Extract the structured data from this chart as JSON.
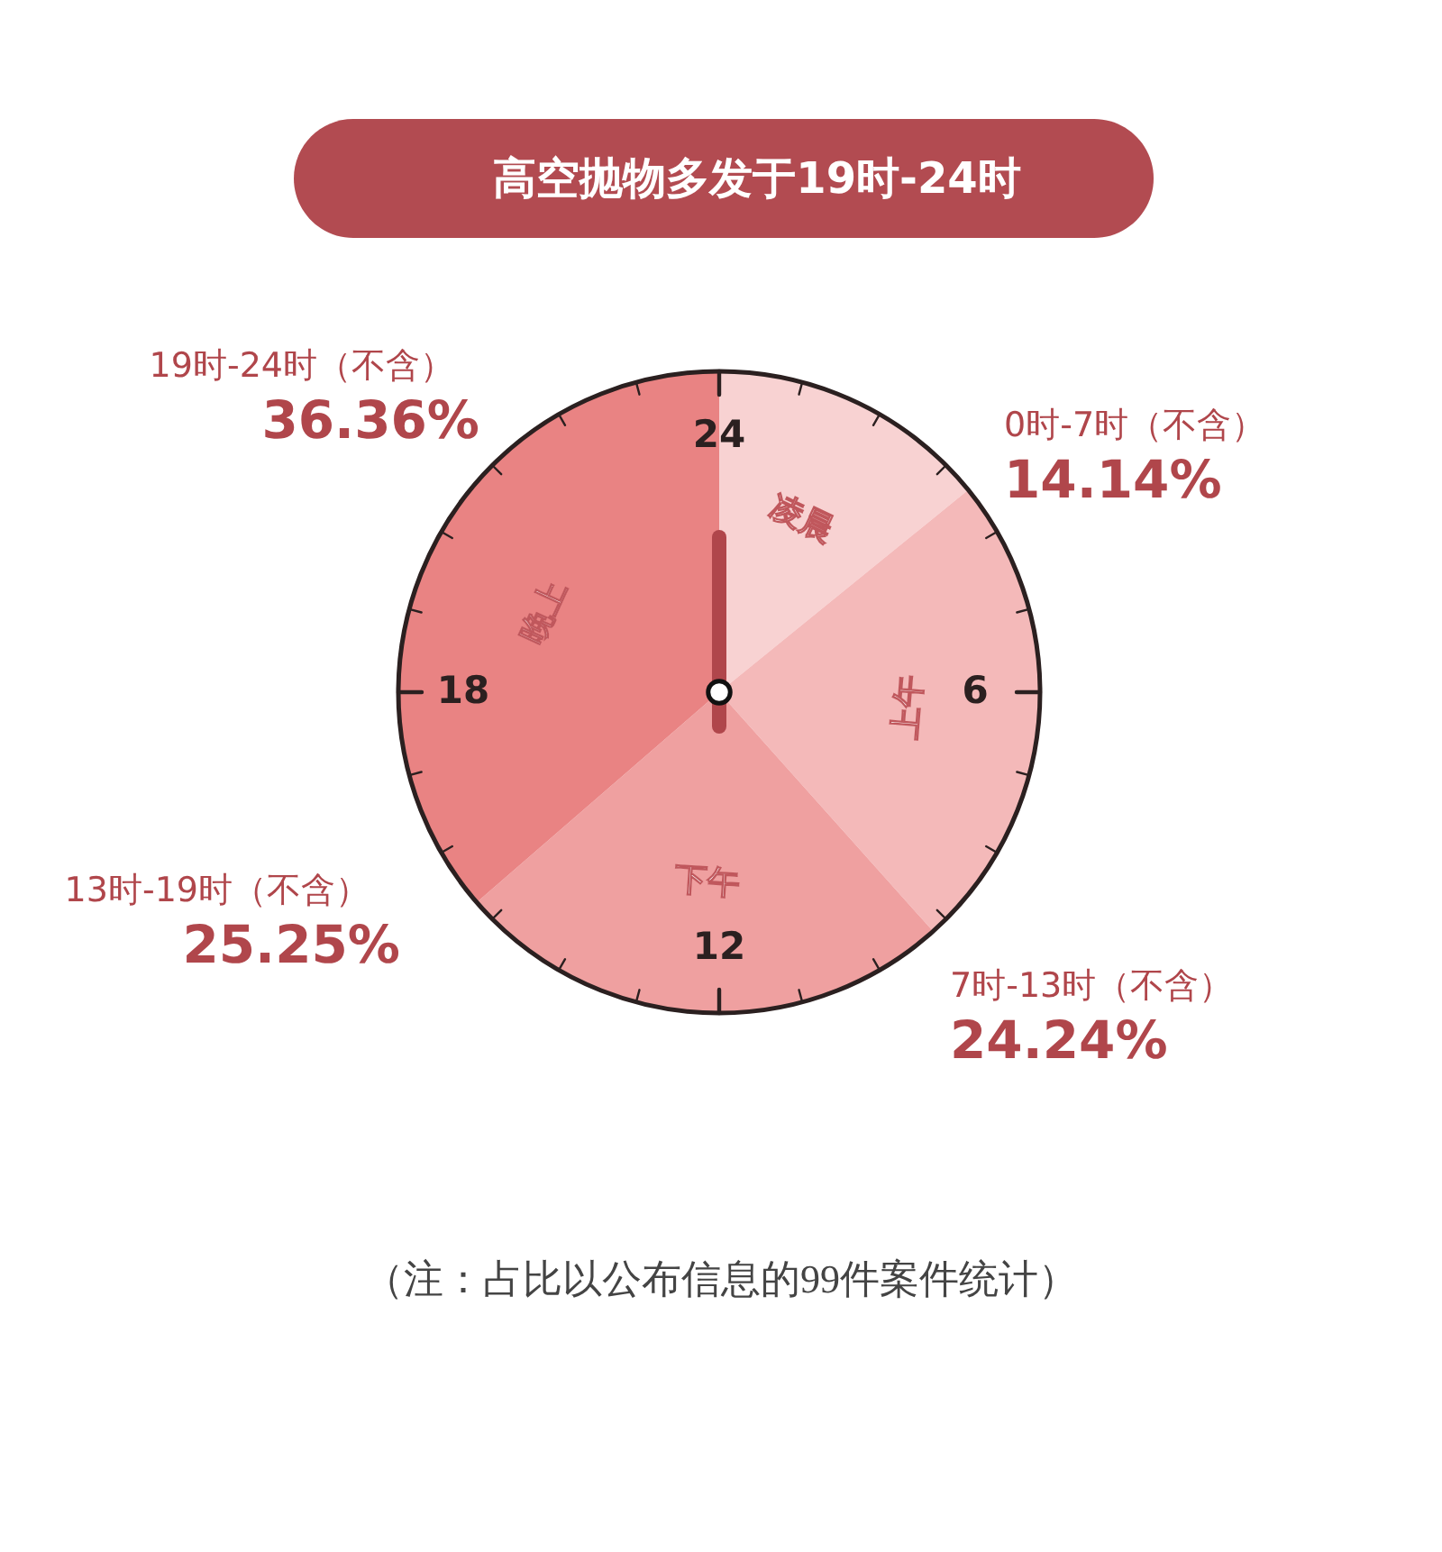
{
  "chart_data": {
    "type": "pie",
    "title": "高空抛物多发于19时-24时",
    "categories": [
      "0时-7时（不含）",
      "7时-13时（不含）",
      "13时-19时（不含）",
      "19时-24时（不含）"
    ],
    "values": [
      14.14,
      24.24,
      25.25,
      36.36
    ],
    "value_labels": [
      "14.14%",
      "24.24%",
      "25.25%",
      "36.36%"
    ],
    "colors": [
      "#f8d2d2",
      "#f4b9b9",
      "#efa0a0",
      "#e98383"
    ],
    "needle": "0时-7时（不含）",
    "annotations": [
      "凌晨",
      "上午",
      "下午",
      "晚上",
      "24",
      "6",
      "12",
      "18",
      "（注：占比以公布信息的99件案件统计）"
    ]
  }
}
